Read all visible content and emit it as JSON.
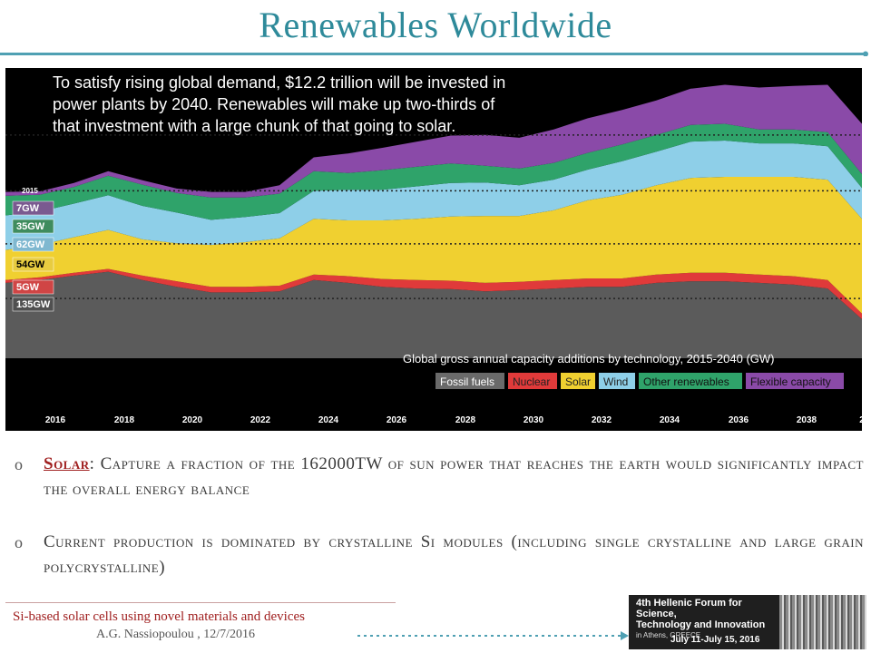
{
  "header": {
    "title": "Renewables Worldwide"
  },
  "colors": {
    "accent": "#2e8a9a",
    "rule": "#4fa0b3",
    "red": "#a02020"
  },
  "caption": "To satisfy rising global demand, $12.2 trillion will be invested in power plants by 2040. Renewables will make up two-thirds of that investment with a large chunk of that going to solar.",
  "chart_data": {
    "type": "area",
    "title": "Global gross annual capacity additions by technology, 2015-2040 (GW)",
    "year_label": "2015",
    "x": [
      2015,
      2016,
      2017,
      2018,
      2019,
      2020,
      2021,
      2022,
      2023,
      2024,
      2025,
      2026,
      2027,
      2028,
      2029,
      2030,
      2031,
      2032,
      2033,
      2034,
      2035,
      2036,
      2037,
      2038,
      2039,
      2040
    ],
    "x_ticks": [
      "2016",
      "2018",
      "2020",
      "2022",
      "2024",
      "2026",
      "2028",
      "2030",
      "2032",
      "2034",
      "2036",
      "2038",
      "2"
    ],
    "series": [
      {
        "name": "Fossil fuels",
        "color": "#5b5b5b",
        "values": [
          135,
          140,
          148,
          155,
          140,
          128,
          118,
          118,
          120,
          140,
          135,
          128,
          125,
          124,
          120,
          122,
          125,
          128,
          128,
          135,
          138,
          138,
          135,
          132,
          125,
          70
        ]
      },
      {
        "name": "Nuclear",
        "color": "#e03a3a",
        "values": [
          5,
          5,
          5,
          5,
          8,
          10,
          10,
          10,
          10,
          10,
          12,
          14,
          15,
          15,
          15,
          15,
          15,
          15,
          15,
          15,
          15,
          15,
          15,
          15,
          15,
          10
        ]
      },
      {
        "name": "Solar",
        "color": "#f0d030",
        "values": [
          54,
          58,
          64,
          70,
          65,
          68,
          75,
          80,
          85,
          100,
          100,
          105,
          110,
          115,
          120,
          118,
          125,
          140,
          150,
          160,
          170,
          172,
          175,
          178,
          180,
          170
        ]
      },
      {
        "name": "Wind",
        "color": "#8ecfe8",
        "values": [
          62,
          60,
          60,
          62,
          60,
          55,
          45,
          45,
          45,
          50,
          55,
          55,
          58,
          60,
          60,
          55,
          55,
          55,
          60,
          60,
          65,
          65,
          60,
          60,
          60,
          55
        ]
      },
      {
        "name": "Other renewables",
        "color": "#2fa36a",
        "values": [
          35,
          30,
          30,
          35,
          38,
          35,
          40,
          35,
          35,
          35,
          30,
          35,
          35,
          35,
          30,
          30,
          30,
          30,
          30,
          30,
          30,
          30,
          25,
          25,
          25,
          25
        ]
      },
      {
        "name": "Flexible capacity",
        "color": "#8a4aa8",
        "values": [
          7,
          6,
          7,
          8,
          8,
          8,
          10,
          10,
          15,
          25,
          35,
          40,
          45,
          50,
          55,
          55,
          60,
          62,
          62,
          62,
          65,
          70,
          75,
          78,
          85,
          90
        ]
      }
    ],
    "start_labels": [
      "7GW",
      "35GW",
      "62GW",
      "54GW",
      "5GW",
      "135GW"
    ],
    "ylim": [
      0,
      520
    ],
    "legend_placement": "bottom-right",
    "grid": "dotted horizontal lines"
  },
  "bullets": [
    {
      "mark": "o",
      "key": "Solar",
      "sep": ":",
      "text": " Capture a fraction of the 162000TW of sun power that reaches the earth would significantly impact the overall energy balance"
    },
    {
      "mark": "o",
      "text": "Current production is dominated by crystalline Si modules (including single crystalline and large grain polycrystalline)"
    }
  ],
  "footer": {
    "title": "Si-based solar cells using novel materials and devices",
    "author": "A.G. Nassiopoulou ,  12/7/2016"
  },
  "logo": {
    "line1": "4th Hellenic Forum for Science,",
    "line2": "Technology and Innovation",
    "line3": "in Athens, GREECE",
    "dates": "July 11-July 15, 2016"
  }
}
